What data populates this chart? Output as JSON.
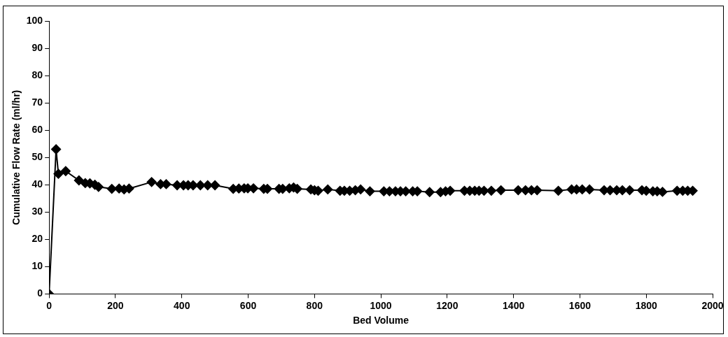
{
  "chart_data": {
    "type": "line",
    "xlabel": "Bed Volume",
    "ylabel": "Cumulative Flow Rate (ml/hr)",
    "xlim": [
      0,
      2000
    ],
    "xticks": [
      0,
      200,
      400,
      600,
      800,
      1000,
      1200,
      1400,
      1600,
      1800,
      2000
    ],
    "ylim": [
      0,
      100
    ],
    "yticks": [
      0,
      10,
      20,
      30,
      40,
      50,
      60,
      70,
      80,
      90,
      100
    ],
    "grid": false,
    "legend": false,
    "marker": "diamond",
    "line_style": "solid",
    "x": [
      0,
      21,
      28,
      50,
      90,
      109,
      123,
      138,
      149,
      189,
      211,
      226,
      241,
      309,
      336,
      353,
      386,
      405,
      419,
      434,
      456,
      478,
      500,
      555,
      572,
      588,
      599,
      616,
      647,
      658,
      693,
      704,
      724,
      737,
      748,
      789,
      800,
      811,
      840,
      877,
      890,
      906,
      923,
      939,
      967,
      1009,
      1026,
      1044,
      1059,
      1075,
      1096,
      1110,
      1147,
      1180,
      1195,
      1209,
      1252,
      1268,
      1283,
      1296,
      1311,
      1333,
      1362,
      1414,
      1436,
      1454,
      1471,
      1535,
      1575,
      1590,
      1607,
      1629,
      1673,
      1691,
      1711,
      1728,
      1750,
      1787,
      1800,
      1820,
      1833,
      1849,
      1893,
      1910,
      1925,
      1940
    ],
    "series": [
      {
        "color": "#000000",
        "values": [
          0,
          53,
          44,
          45,
          41.6,
          40.6,
          40.5,
          40,
          39.2,
          38.5,
          38.6,
          38.3,
          38.6,
          41,
          40.2,
          40.2,
          39.8,
          39.8,
          39.8,
          39.8,
          39.8,
          39.8,
          39.8,
          38.5,
          38.6,
          38.7,
          38.7,
          38.7,
          38.5,
          38.5,
          38.5,
          38.5,
          38.7,
          39,
          38.5,
          38.3,
          38,
          37.8,
          38.3,
          37.8,
          37.8,
          37.8,
          38,
          38.3,
          37.6,
          37.6,
          37.6,
          37.6,
          37.6,
          37.6,
          37.6,
          37.6,
          37.3,
          37.3,
          37.6,
          37.8,
          37.8,
          37.8,
          37.8,
          37.8,
          37.8,
          37.8,
          38,
          38,
          38,
          38,
          38,
          37.8,
          38.3,
          38.3,
          38.3,
          38.3,
          38,
          38,
          38,
          38,
          38,
          38,
          37.8,
          37.6,
          37.6,
          37.4,
          37.8,
          37.8,
          37.8,
          37.8
        ]
      }
    ]
  }
}
